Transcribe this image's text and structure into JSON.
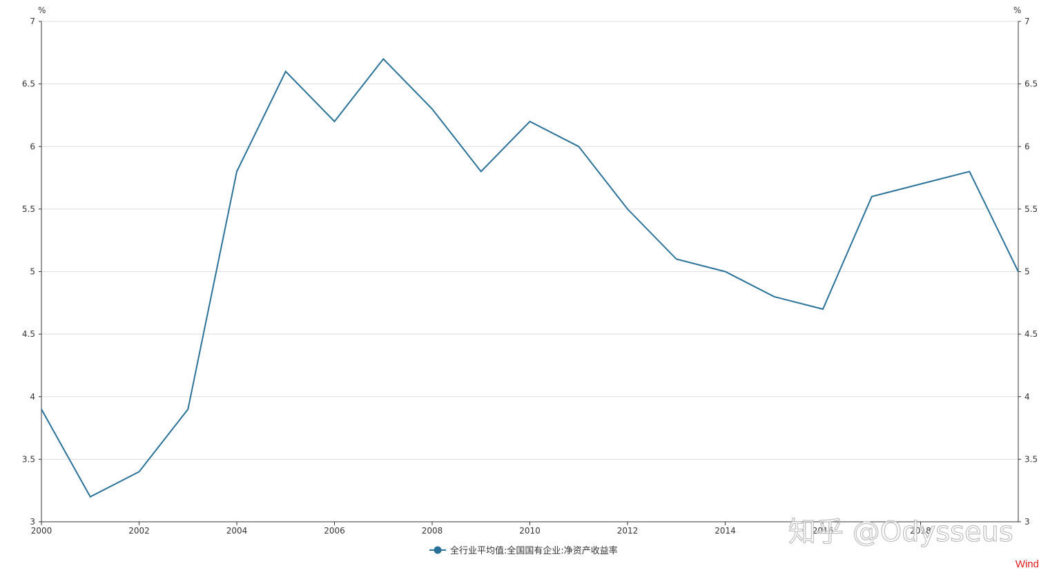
{
  "chart_data": {
    "type": "line",
    "title": "",
    "xlabel": "",
    "ylabel": "%",
    "y2label": "%",
    "xlim": [
      2000,
      2020
    ],
    "ylim": [
      3,
      7
    ],
    "x_ticks": [
      2000,
      2002,
      2004,
      2006,
      2008,
      2010,
      2012,
      2014,
      2016,
      2018
    ],
    "y_ticks": [
      3,
      3.5,
      4,
      4.5,
      5,
      5.5,
      6,
      6.5,
      7
    ],
    "grid": true,
    "legend_position": "bottom-center",
    "x": [
      2000,
      2001,
      2002,
      2003,
      2004,
      2005,
      2006,
      2007,
      2008,
      2009,
      2010,
      2011,
      2012,
      2013,
      2014,
      2015,
      2016,
      2017,
      2018,
      2019,
      2020
    ],
    "series": [
      {
        "name": "全行业平均值:全国国有企业:净资产收益率",
        "color": "#2a7199",
        "values": [
          3.9,
          3.2,
          3.4,
          3.9,
          5.8,
          6.6,
          6.2,
          6.7,
          6.3,
          5.8,
          6.2,
          6.0,
          5.5,
          5.1,
          5.0,
          4.8,
          4.7,
          5.6,
          5.7,
          5.8,
          5.0
        ]
      }
    ]
  },
  "source_label": "Wind",
  "watermark": "知乎 @Odysseus",
  "colors": {
    "line": "#2a7199",
    "grid": "#dddddd",
    "axis": "#333333",
    "source": "#e31a1c"
  }
}
